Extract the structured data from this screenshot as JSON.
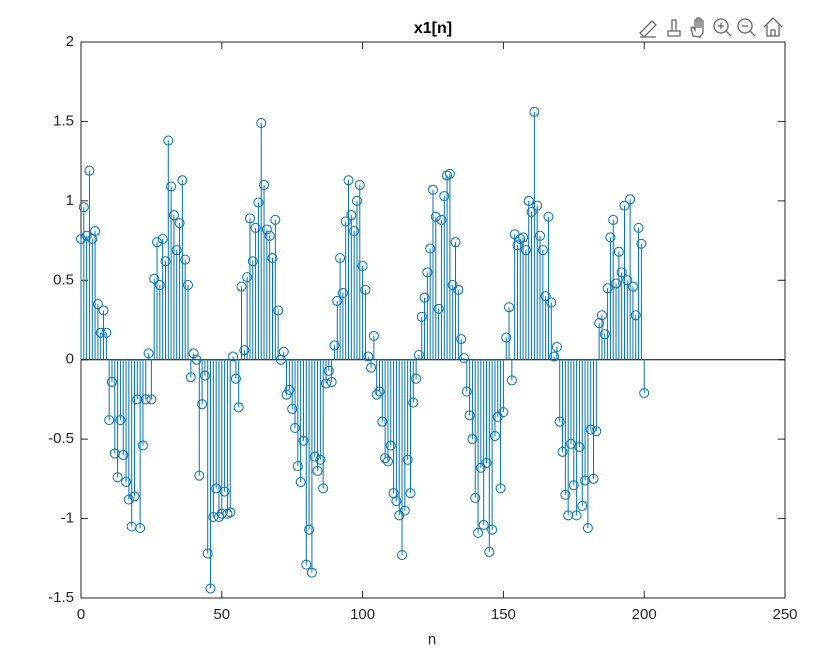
{
  "chart_data": {
    "type": "stem",
    "title": "x1[n]",
    "x_label": "n",
    "color": "#0072bd",
    "xlim": [
      0,
      250
    ],
    "xticks": [
      0,
      50,
      100,
      150,
      200,
      250
    ],
    "ylim": [
      -1.5,
      2
    ],
    "yticks": [
      -1.5,
      -1,
      -0.5,
      0,
      0.5,
      1,
      1.5,
      2
    ],
    "x": [
      0,
      1,
      2,
      3,
      4,
      5,
      6,
      7,
      8,
      9,
      10,
      11,
      12,
      13,
      14,
      15,
      16,
      17,
      18,
      19,
      20,
      21,
      22,
      23,
      24,
      25,
      26,
      27,
      28,
      29,
      30,
      31,
      32,
      33,
      34,
      35,
      36,
      37,
      38,
      39,
      40,
      41,
      42,
      43,
      44,
      45,
      46,
      47,
      48,
      49,
      50,
      51,
      52,
      53,
      54,
      55,
      56,
      57,
      58,
      59,
      60,
      61,
      62,
      63,
      64,
      65,
      66,
      67,
      68,
      69,
      70,
      71,
      72,
      73,
      74,
      75,
      76,
      77,
      78,
      79,
      80,
      81,
      82,
      83,
      84,
      85,
      86,
      87,
      88,
      89,
      90,
      91,
      92,
      93,
      94,
      95,
      96,
      97,
      98,
      99,
      100,
      101,
      102,
      103,
      104,
      105,
      106,
      107,
      108,
      109,
      110,
      111,
      112,
      113,
      114,
      115,
      116,
      117,
      118,
      119,
      120,
      121,
      122,
      123,
      124,
      125,
      126,
      127,
      128,
      129,
      130,
      131,
      132,
      133,
      134,
      135,
      136,
      137,
      138,
      139,
      140,
      141,
      142,
      143,
      144,
      145,
      146,
      147,
      148,
      149,
      150,
      151,
      152,
      153,
      154,
      155,
      156,
      157,
      158,
      159,
      160,
      161,
      162,
      163,
      164,
      165,
      166,
      167,
      168,
      169,
      170,
      171,
      172,
      173,
      174,
      175,
      176,
      177,
      178,
      179,
      180,
      181,
      182,
      183,
      184,
      185,
      186,
      187,
      188,
      189,
      190,
      191,
      192,
      193,
      194,
      195,
      196,
      197,
      198,
      199,
      200
    ],
    "values": [
      0.76,
      0.96,
      0.78,
      1.19,
      0.76,
      0.81,
      0.35,
      0.17,
      0.31,
      0.17,
      -0.38,
      -0.14,
      -0.59,
      -0.74,
      -0.38,
      -0.6,
      -0.77,
      -0.88,
      -1.05,
      -0.86,
      -0.25,
      -1.06,
      -0.54,
      -0.25,
      0.04,
      -0.25,
      0.51,
      0.74,
      0.47,
      0.76,
      0.62,
      1.38,
      1.09,
      0.91,
      0.69,
      0.86,
      1.13,
      0.63,
      0.47,
      -0.11,
      0.04,
      0.0,
      -0.73,
      -0.28,
      -0.1,
      -1.22,
      -1.44,
      -0.99,
      -0.81,
      -0.99,
      -0.97,
      -0.83,
      -0.97,
      -0.96,
      0.02,
      -0.12,
      -0.3,
      0.46,
      0.06,
      0.52,
      0.89,
      0.62,
      0.83,
      0.99,
      1.49,
      1.1,
      0.82,
      0.78,
      0.64,
      0.88,
      0.31,
      0.0,
      0.05,
      -0.22,
      -0.19,
      -0.31,
      -0.43,
      -0.67,
      -0.77,
      -0.51,
      -1.29,
      -1.07,
      -1.34,
      -0.61,
      -0.7,
      -0.63,
      -0.81,
      -0.15,
      -0.07,
      -0.14,
      0.09,
      0.37,
      0.64,
      0.42,
      0.87,
      1.13,
      0.91,
      0.81,
      1.0,
      1.1,
      0.59,
      0.44,
      0.02,
      -0.05,
      0.15,
      -0.22,
      -0.2,
      -0.39,
      -0.62,
      -0.64,
      -0.54,
      -0.84,
      -0.89,
      -0.98,
      -1.23,
      -0.95,
      -0.63,
      -0.84,
      -0.27,
      -0.12,
      0.03,
      0.27,
      0.39,
      0.55,
      0.7,
      1.07,
      0.9,
      0.32,
      0.88,
      1.03,
      1.16,
      1.17,
      0.47,
      0.74,
      0.44,
      0.13,
      0.01,
      -0.2,
      -0.35,
      -0.5,
      -0.87,
      -1.09,
      -0.68,
      -1.04,
      -0.65,
      -1.21,
      -1.07,
      -0.48,
      -0.36,
      -0.81,
      -0.33,
      0.14,
      0.33,
      -0.13,
      0.79,
      0.72,
      0.76,
      0.77,
      0.69,
      1.0,
      0.93,
      1.56,
      0.97,
      0.78,
      0.69,
      0.4,
      0.9,
      0.36,
      0.02,
      0.08,
      -0.39,
      -0.58,
      -0.85,
      -0.98,
      -0.53,
      -0.79,
      -0.98,
      -0.55,
      -0.92,
      -0.76,
      -1.06,
      -0.44,
      -0.75,
      -0.45,
      0.23,
      0.28,
      0.16,
      0.45,
      0.77,
      0.88,
      0.48,
      0.68,
      0.55,
      0.97,
      0.5,
      1.01,
      0.46,
      0.28,
      0.83,
      0.73,
      -0.21
    ]
  }
}
